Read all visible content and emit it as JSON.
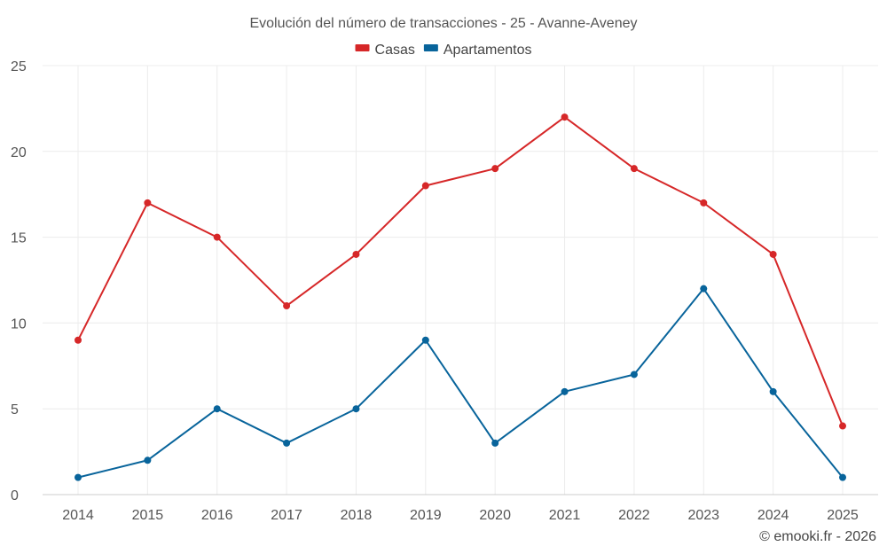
{
  "chart_data": {
    "type": "line",
    "title": "Evolución del número de transacciones - 25 - Avanne-Aveney",
    "xlabel": "",
    "ylabel": "",
    "categories": [
      "2014",
      "2015",
      "2016",
      "2017",
      "2018",
      "2019",
      "2020",
      "2021",
      "2022",
      "2023",
      "2024",
      "2025"
    ],
    "ylim": [
      0,
      25
    ],
    "yticks": [
      0,
      5,
      10,
      15,
      20,
      25
    ],
    "grid": true,
    "legend_position": "top-center",
    "series": [
      {
        "name": "Casas",
        "color": "#d62728",
        "values": [
          9,
          17,
          15,
          11,
          14,
          18,
          19,
          22,
          19,
          17,
          14,
          4
        ]
      },
      {
        "name": "Apartamentos",
        "color": "#08649b",
        "values": [
          1,
          2,
          5,
          3,
          5,
          9,
          3,
          6,
          7,
          12,
          6,
          1
        ]
      }
    ],
    "credit": "© emooki.fr - 2026"
  }
}
